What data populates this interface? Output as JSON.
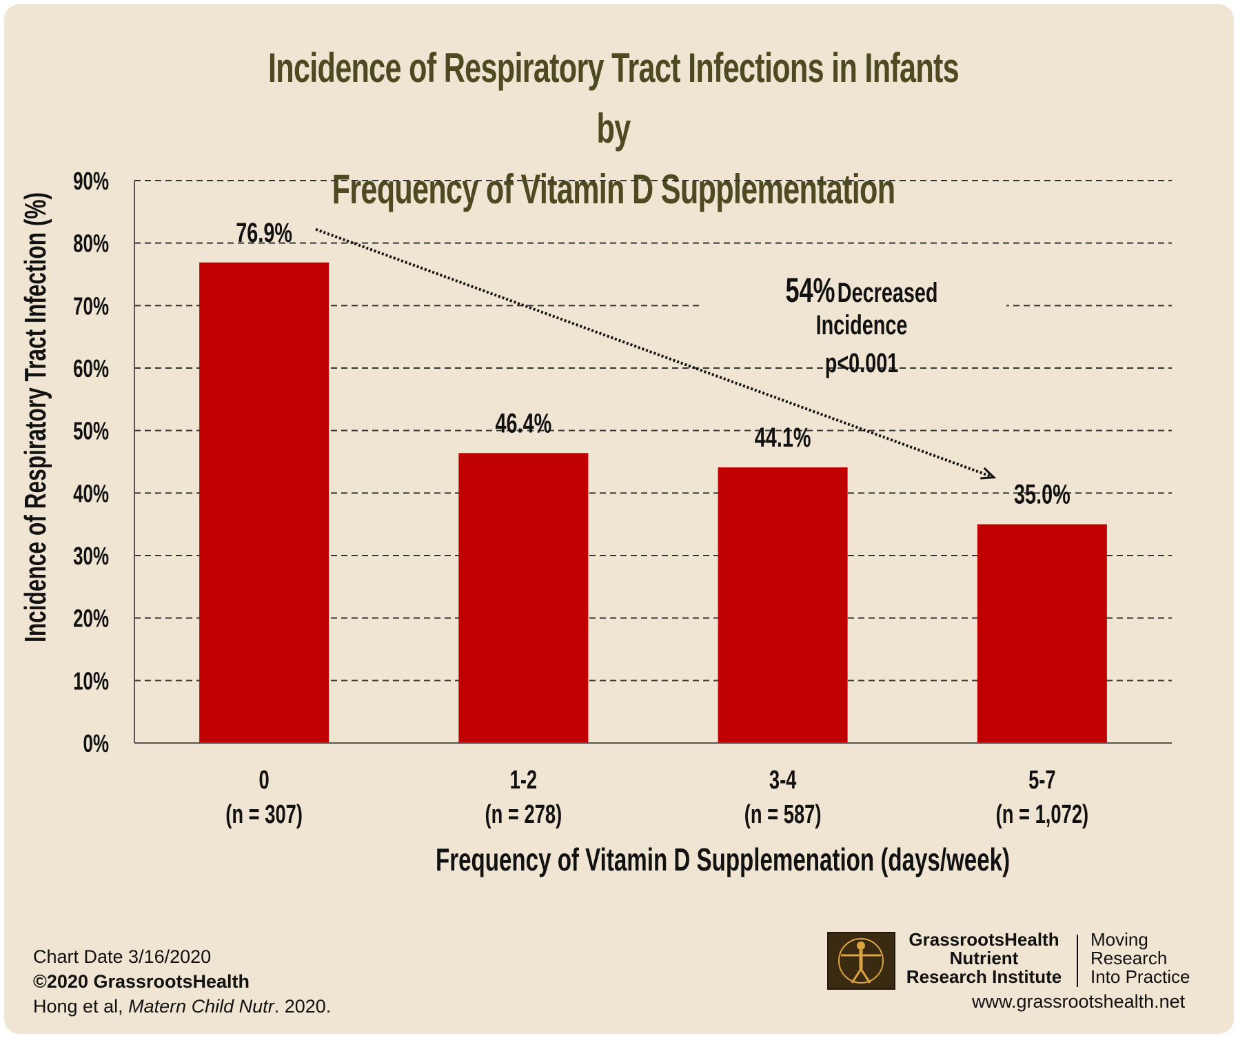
{
  "header": {
    "title_line1": "Incidence of Respiratory Tract Infections in Infants by",
    "title_line2": "Frequency of Vitamin D Supplementation"
  },
  "chart_data": {
    "type": "bar",
    "categories": [
      "0",
      "1-2",
      "3-4",
      "5-7"
    ],
    "category_sublabels": [
      "(n = 307)",
      "(n = 278)",
      "(n = 587)",
      "(n = 1,072)"
    ],
    "values": [
      76.9,
      46.4,
      44.1,
      35.0
    ],
    "data_labels": [
      "76.9%",
      "46.4%",
      "44.1%",
      "35.0%"
    ],
    "ylabel": "Incidence of Respiratory Tract Infection (%)",
    "xlabel": "Frequency of Vitamin D Supplemenation (days/week)",
    "ylim": [
      0,
      90
    ],
    "yticks": [
      0,
      10,
      20,
      30,
      40,
      50,
      60,
      70,
      80,
      90
    ],
    "ytick_labels": [
      "0%",
      "10%",
      "20%",
      "30%",
      "40%",
      "50%",
      "60%",
      "70%",
      "80%",
      "90%"
    ],
    "grid": "horizontal dashed",
    "bar_color": "#c00000",
    "annotation": {
      "emphasis": "54%",
      "text": "Decreased Incidence",
      "pvalue": "p<0.001"
    }
  },
  "footer": {
    "chart_date": "Chart Date 3/16/2020",
    "copyright": "©2020 GrassrootsHealth",
    "citation_authors": "Hong et al,",
    "citation_journal": "Matern Child Nutr",
    "citation_year": ". 2020.",
    "logo_line1": "GrassrootsHealth",
    "logo_line2": "Nutrient",
    "logo_line3": "Research Institute",
    "tagline_line1": "Moving",
    "tagline_line2": "Research",
    "tagline_line3": "Into Practice",
    "website": "www.grassrootshealth.net"
  }
}
